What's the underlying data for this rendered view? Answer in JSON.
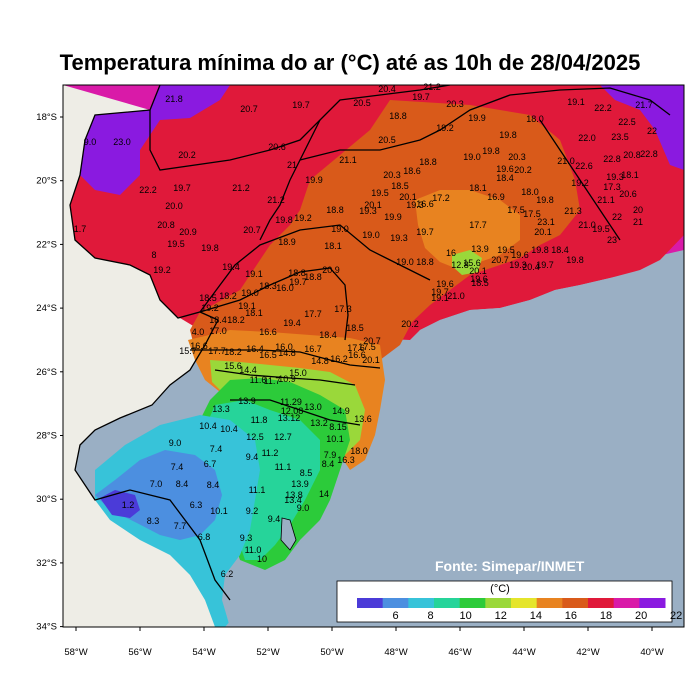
{
  "title": "Temperatura mínima do ar (°C) até as 10h de 28/04/2025",
  "source": "Fonte: Simepar/INMET",
  "unit": "(°C)",
  "colors": {
    "ocean": "#9aafc4",
    "land_outside": "#eeede6",
    "bins": [
      "#4b3bd8",
      "#4c8fe0",
      "#37c3d9",
      "#26d49a",
      "#2ccb3a",
      "#9ad83a",
      "#e5e52b",
      "#e88320",
      "#d95a1a",
      "#e0193a",
      "#d91aa8",
      "#8a1ae0"
    ]
  },
  "colorbar_labels": [
    "6",
    "8",
    "10",
    "12",
    "14",
    "16",
    "18",
    "20",
    "22"
  ],
  "axes": {
    "lon_ticks": [
      "58°W",
      "56°W",
      "54°W",
      "52°W",
      "50°W",
      "48°W",
      "46°W",
      "44°W",
      "42°W",
      "40°W"
    ],
    "lat_ticks": [
      "18°S",
      "20°S",
      "22°S",
      "24°S",
      "26°S",
      "28°S",
      "30°S",
      "32°S",
      "34°S"
    ]
  },
  "labels": [
    [
      "21.8",
      174,
      102
    ],
    [
      "20.7",
      249,
      112
    ],
    [
      "19.7",
      301,
      108
    ],
    [
      "20.5",
      362,
      106
    ],
    [
      "20.4",
      387,
      92
    ],
    [
      "21.2",
      432,
      90
    ],
    [
      "19.7",
      421,
      100
    ],
    [
      "20.3",
      455,
      107
    ],
    [
      "18.8",
      398,
      119
    ],
    [
      "19.9",
      477,
      121
    ],
    [
      "19.2",
      445,
      131
    ],
    [
      "18.0",
      535,
      122
    ],
    [
      "19.1",
      576,
      105
    ],
    [
      "22.2",
      603,
      111
    ],
    [
      "21.7",
      644,
      108
    ],
    [
      "22.5",
      627,
      125
    ],
    [
      "22",
      652,
      134
    ],
    [
      "9.0",
      90,
      145
    ],
    [
      "23.0",
      122,
      145
    ],
    [
      "20.2",
      187,
      158
    ],
    [
      "20.6",
      277,
      150
    ],
    [
      "21.1",
      348,
      163
    ],
    [
      "20.5",
      387,
      143
    ],
    [
      "19.8",
      508,
      138
    ],
    [
      "19.8",
      491,
      154
    ],
    [
      "20.3",
      517,
      160
    ],
    [
      "21.0",
      566,
      164
    ],
    [
      "22.6",
      584,
      169
    ],
    [
      "22.0",
      587,
      141
    ],
    [
      "23.5",
      620,
      140
    ],
    [
      "22.8",
      612,
      162
    ],
    [
      "20.8",
      632,
      158
    ],
    [
      "22.8",
      649,
      157
    ],
    [
      "21",
      292,
      168
    ],
    [
      "22.2",
      148,
      193
    ],
    [
      "19.7",
      182,
      191
    ],
    [
      "21.2",
      241,
      191
    ],
    [
      "19.9",
      314,
      183
    ],
    [
      "20.3",
      392,
      178
    ],
    [
      "18.6",
      412,
      174
    ],
    [
      "18.8",
      428,
      165
    ],
    [
      "19.0",
      472,
      160
    ],
    [
      "20.2",
      523,
      173
    ],
    [
      "19.6",
      505,
      172
    ],
    [
      "18.4",
      505,
      181
    ],
    [
      "19.2",
      580,
      186
    ],
    [
      "17.3",
      612,
      190
    ],
    [
      "21.1",
      606,
      203
    ],
    [
      "18.1",
      630,
      178
    ],
    [
      "19.3",
      615,
      180
    ],
    [
      "20.6",
      628,
      197
    ],
    [
      "20.0",
      174,
      209
    ],
    [
      "21.2",
      276,
      203
    ],
    [
      "19.5",
      380,
      196
    ],
    [
      "18.5",
      400,
      189
    ],
    [
      "20.1",
      408,
      200
    ],
    [
      "19.3",
      415,
      208
    ],
    [
      "17.2",
      441,
      201
    ],
    [
      "18.1",
      478,
      191
    ],
    [
      "16.9",
      496,
      200
    ],
    [
      "18.0",
      530,
      195
    ],
    [
      "21.3",
      573,
      214
    ],
    [
      "17.5",
      516,
      213
    ],
    [
      "17.5",
      532,
      217
    ],
    [
      "19.8",
      545,
      203
    ],
    [
      "20",
      638,
      213
    ],
    [
      "1.7",
      80,
      232
    ],
    [
      "20.8",
      166,
      228
    ],
    [
      "20.9",
      188,
      235
    ],
    [
      "20.7",
      252,
      233
    ],
    [
      "19.8",
      284,
      223
    ],
    [
      "19.2",
      303,
      221
    ],
    [
      "18.8",
      335,
      213
    ],
    [
      "20.1",
      373,
      208
    ],
    [
      "19.3",
      368,
      214
    ],
    [
      "19.9",
      393,
      220
    ],
    [
      "16.6",
      425,
      207
    ],
    [
      "19.0",
      340,
      232
    ],
    [
      "19.0",
      371,
      238
    ],
    [
      "19.3",
      399,
      241
    ],
    [
      "19.7",
      425,
      235
    ],
    [
      "17.7",
      478,
      228
    ],
    [
      "23.1",
      546,
      225
    ],
    [
      "20.1",
      543,
      235
    ],
    [
      "21.0",
      587,
      228
    ],
    [
      "22",
      617,
      220
    ],
    [
      "19.5",
      601,
      232
    ],
    [
      "21",
      638,
      225
    ],
    [
      "19.5",
      176,
      247
    ],
    [
      "19.8",
      210,
      251
    ],
    [
      "18.9",
      287,
      245
    ],
    [
      "18.1",
      333,
      249
    ],
    [
      "13.9",
      480,
      252
    ],
    [
      "12.8",
      460,
      268
    ],
    [
      "15.6",
      472,
      266
    ],
    [
      "20.1",
      478,
      274
    ],
    [
      "19.5",
      506,
      253
    ],
    [
      "20.7",
      500,
      263
    ],
    [
      "19.6",
      520,
      258
    ],
    [
      "19.8",
      540,
      253
    ],
    [
      "18.4",
      560,
      253
    ],
    [
      "23",
      612,
      243
    ],
    [
      "8",
      154,
      258
    ],
    [
      "19.2",
      162,
      273
    ],
    [
      "19.4",
      231,
      270
    ],
    [
      "19.1",
      254,
      277
    ],
    [
      "20.9",
      331,
      273
    ],
    [
      "19.0",
      405,
      265
    ],
    [
      "18.8",
      425,
      265
    ],
    [
      "16",
      451,
      256
    ],
    [
      "19.6",
      479,
      282
    ],
    [
      "19.3",
      518,
      268
    ],
    [
      "20.4",
      531,
      270
    ],
    [
      "19.7",
      545,
      268
    ],
    [
      "19.8",
      575,
      263
    ],
    [
      "19.0",
      250,
      296
    ],
    [
      "18.3",
      268,
      289
    ],
    [
      "16.0",
      285,
      291
    ],
    [
      "19.7",
      298,
      285
    ],
    [
      "18.8",
      313,
      280
    ],
    [
      "18.8",
      297,
      276
    ],
    [
      "19.6",
      445,
      287
    ],
    [
      "19.7",
      440,
      295
    ],
    [
      "19.1",
      440,
      301
    ],
    [
      "21.0",
      456,
      299
    ],
    [
      "18.5",
      480,
      286
    ],
    [
      "18.5",
      208,
      301
    ],
    [
      "18.2",
      228,
      299
    ],
    [
      "19.1",
      247,
      309
    ],
    [
      "18.1",
      254,
      316
    ],
    [
      "17.7",
      313,
      317
    ],
    [
      "17.3",
      343,
      312
    ],
    [
      "19.2",
      210,
      311
    ],
    [
      "18.4",
      218,
      323
    ],
    [
      "19.4",
      292,
      326
    ],
    [
      "18.2",
      236,
      323
    ],
    [
      "20.2",
      410,
      327
    ],
    [
      "18.5",
      355,
      331
    ],
    [
      "4.0",
      198,
      335
    ],
    [
      "17.0",
      218,
      334
    ],
    [
      "16.6",
      268,
      335
    ],
    [
      "18.4",
      328,
      338
    ],
    [
      "20.7",
      372,
      344
    ],
    [
      "16.6",
      199,
      349
    ],
    [
      "17.7",
      217,
      354
    ],
    [
      "18.2",
      233,
      355
    ],
    [
      "16.4",
      255,
      352
    ],
    [
      "16.0",
      284,
      350
    ],
    [
      "16.7",
      313,
      352
    ],
    [
      "17.6",
      356,
      351
    ],
    [
      "17.5",
      367,
      350
    ],
    [
      "16.6",
      357,
      358
    ],
    [
      "15.7",
      188,
      354
    ],
    [
      "16.5",
      268,
      358
    ],
    [
      "14.8",
      287,
      356
    ],
    [
      "16.2",
      339,
      362
    ],
    [
      "14.8",
      320,
      364
    ],
    [
      "20.1",
      371,
      363
    ],
    [
      "15.6",
      233,
      369
    ],
    [
      "14.4",
      248,
      373
    ],
    [
      "15.0",
      298,
      376
    ],
    [
      "11.6",
      258,
      383
    ],
    [
      "11.7",
      272,
      384
    ],
    [
      "10.9",
      287,
      382
    ],
    [
      "13.9",
      247,
      404
    ],
    [
      "11.29",
      291,
      405
    ],
    [
      "12.08",
      292,
      414
    ],
    [
      "13.3",
      221,
      412
    ],
    [
      "11.8",
      259,
      423
    ],
    [
      "13.12",
      289,
      421
    ],
    [
      "13.0",
      313,
      410
    ],
    [
      "14.9",
      341,
      414
    ],
    [
      "13.2",
      319,
      426
    ],
    [
      "8.15",
      338,
      430
    ],
    [
      "13.6",
      363,
      422
    ],
    [
      "12.5",
      255,
      440
    ],
    [
      "12.7",
      283,
      440
    ],
    [
      "10.4",
      208,
      429
    ],
    [
      "10.4",
      229,
      432
    ],
    [
      "9.0",
      175,
      446
    ],
    [
      "7.4",
      216,
      452
    ],
    [
      "11.2",
      270,
      456
    ],
    [
      "10.1",
      335,
      442
    ],
    [
      "9.4",
      252,
      460
    ],
    [
      "6.7",
      210,
      467
    ],
    [
      "7.9",
      330,
      458
    ],
    [
      "16.3",
      346,
      463
    ],
    [
      "8.4",
      328,
      467
    ],
    [
      "18.0",
      359,
      454
    ],
    [
      "7.4",
      177,
      470
    ],
    [
      "11.1",
      283,
      470
    ],
    [
      "8.5",
      306,
      476
    ],
    [
      "8.4",
      182,
      487
    ],
    [
      "8.4",
      213,
      488
    ],
    [
      "7.0",
      156,
      487
    ],
    [
      "13.9",
      300,
      487
    ],
    [
      "13.8",
      294,
      498
    ],
    [
      "13.4",
      293,
      503
    ],
    [
      "11.1",
      257,
      493
    ],
    [
      "14",
      324,
      497
    ],
    [
      "6.3",
      196,
      508
    ],
    [
      "10.1",
      219,
      514
    ],
    [
      "9.2",
      252,
      514
    ],
    [
      "9.0",
      303,
      511
    ],
    [
      "1.2",
      128,
      508
    ],
    [
      "7.7",
      180,
      529
    ],
    [
      "8.3",
      153,
      524
    ],
    [
      "9.4",
      274,
      522
    ],
    [
      "6.8",
      204,
      540
    ],
    [
      "9.3",
      246,
      541
    ],
    [
      "11.0",
      253,
      553
    ],
    [
      "10",
      262,
      562
    ],
    [
      "6.2",
      227,
      577
    ]
  ]
}
